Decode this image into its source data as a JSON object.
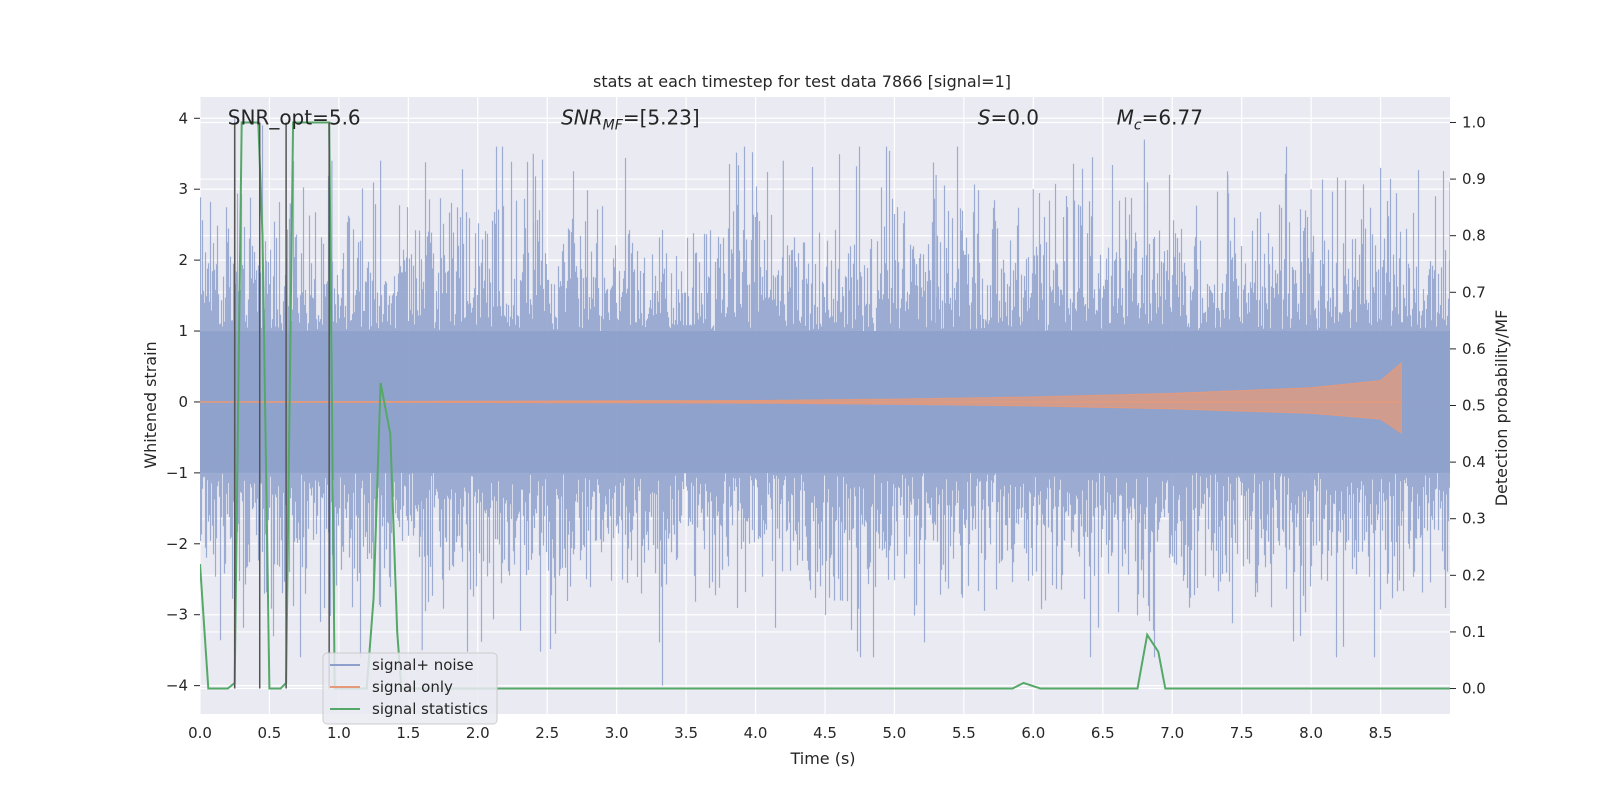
{
  "chart_data": {
    "type": "line",
    "title": "stats at each timestep for test data 7866 [signal=1]",
    "xlabel": "Time (s)",
    "ylabel": "Whitened strain",
    "y2label": "Detection probability/MF",
    "xlim": [
      0.0,
      9.0
    ],
    "ylim": [
      -4.4,
      4.3
    ],
    "y2lim": [
      -0.045,
      1.045
    ],
    "xticks": [
      "0.0",
      "0.5",
      "1.0",
      "1.5",
      "2.0",
      "2.5",
      "3.0",
      "3.5",
      "4.0",
      "4.5",
      "5.0",
      "5.5",
      "6.0",
      "6.5",
      "7.0",
      "7.5",
      "8.0",
      "8.5"
    ],
    "yticks": [
      "4",
      "3",
      "2",
      "1",
      "0",
      "−1",
      "−2",
      "−3",
      "−4"
    ],
    "y2ticks": [
      "1.0",
      "0.9",
      "0.8",
      "0.7",
      "0.6",
      "0.5",
      "0.4",
      "0.3",
      "0.2",
      "0.1",
      "0.0"
    ],
    "grid": true,
    "legend_position": "lower-left",
    "annotations": [
      {
        "text": "SNR_opt=5.6",
        "x": 0.2,
        "y": 4.0
      },
      {
        "text": "SNR_MF=[5.23]",
        "x": 2.6,
        "y": 4.0
      },
      {
        "text": "S=0.0",
        "x": 5.6,
        "y": 4.0
      },
      {
        "text": "M_c=6.77",
        "x": 6.6,
        "y": 4.0
      }
    ],
    "series": [
      {
        "name": "signal+ noise",
        "color": "#8da0cb",
        "axis": "left",
        "description_values": {
          "typical_amplitude": 1.0,
          "peak_max": 4.0,
          "peak_min": -4.0
        },
        "x": [
          0.0,
          0.25,
          0.45,
          0.65,
          0.95,
          1.3,
          1.6,
          2.4,
          3.33,
          4.2,
          5.3,
          6.0,
          6.8,
          7.4,
          8.0,
          8.5,
          9.0
        ],
        "values": [
          2.2,
          4.0,
          3.9,
          2.8,
          3.4,
          3.4,
          -3.5,
          3.5,
          -4.0,
          3.4,
          3.2,
          3.0,
          3.7,
          3.2,
          3.0,
          3.3,
          3.1
        ]
      },
      {
        "name": "signal only",
        "color": "#e5997a",
        "axis": "left",
        "x": [
          0.0,
          4.0,
          5.0,
          6.0,
          7.0,
          8.0,
          8.5,
          8.65,
          8.66
        ],
        "values": [
          0.0,
          0.02,
          0.04,
          0.07,
          0.12,
          0.2,
          0.3,
          0.55,
          0.0
        ]
      },
      {
        "name": "signal statistics",
        "color": "#55a868",
        "axis": "right",
        "x": [
          0.0,
          0.06,
          0.2,
          0.25,
          0.3,
          0.42,
          0.45,
          0.5,
          0.58,
          0.62,
          0.67,
          0.7,
          0.93,
          0.97,
          1.0,
          1.2,
          1.25,
          1.3,
          1.37,
          1.42,
          1.45,
          1.5,
          5.85,
          5.93,
          6.05,
          6.75,
          6.82,
          6.9,
          6.95,
          9.0
        ],
        "values": [
          0.22,
          0.0,
          0.0,
          0.01,
          1.0,
          1.0,
          0.8,
          0.0,
          0.0,
          0.01,
          1.0,
          1.0,
          1.0,
          0.0,
          0.0,
          0.0,
          0.16,
          0.54,
          0.45,
          0.1,
          0.0,
          0.0,
          0.0,
          0.01,
          0.0,
          0.0,
          0.095,
          0.065,
          0.0,
          0.0
        ]
      }
    ]
  }
}
